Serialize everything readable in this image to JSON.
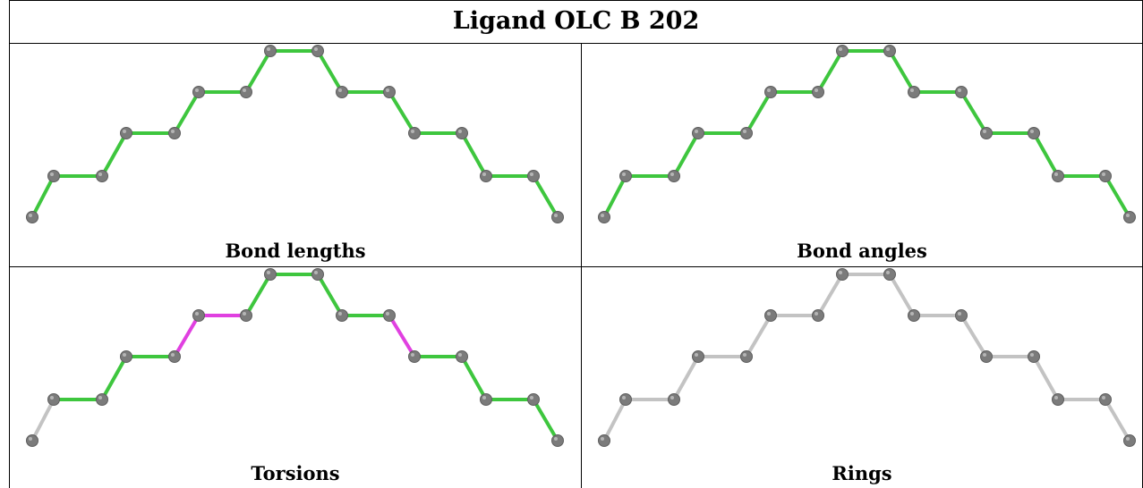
{
  "title": "Ligand OLC B 202",
  "colors": {
    "ok": "#3ec63e",
    "outlier": "#e040e0",
    "neutral": "#c3c3c3",
    "atom": "#7b7b7b"
  },
  "panels": [
    {
      "caption": "Bond lengths",
      "bond_status": [
        "ok",
        "ok",
        "ok",
        "ok",
        "ok",
        "ok",
        "ok",
        "ok",
        "ok",
        "ok",
        "ok",
        "ok",
        "ok",
        "ok",
        "ok",
        "ok",
        "ok",
        "ok",
        "ok",
        "ok",
        "ok"
      ]
    },
    {
      "caption": "Bond angles",
      "bond_status": [
        "ok",
        "ok",
        "ok",
        "ok",
        "ok",
        "ok",
        "ok",
        "ok",
        "ok",
        "ok",
        "ok",
        "ok",
        "ok",
        "ok",
        "ok",
        "ok",
        "ok",
        "ok",
        "ok",
        "ok",
        "ok"
      ]
    },
    {
      "caption": "Torsions",
      "bond_status": [
        "neutral",
        "ok",
        "ok",
        "ok",
        "outlier",
        "outlier",
        "ok",
        "ok",
        "ok",
        "ok",
        "outlier",
        "ok",
        "ok",
        "ok",
        "ok",
        "ok",
        "ok",
        "ok",
        "ok",
        "ok",
        "neutral"
      ]
    },
    {
      "caption": "Rings",
      "bond_status": [
        "neutral",
        "neutral",
        "neutral",
        "neutral",
        "neutral",
        "neutral",
        "neutral",
        "neutral",
        "neutral",
        "neutral",
        "neutral",
        "neutral",
        "neutral",
        "neutral",
        "neutral",
        "neutral",
        "neutral",
        "neutral",
        "neutral",
        "neutral",
        "neutral"
      ]
    }
  ]
}
